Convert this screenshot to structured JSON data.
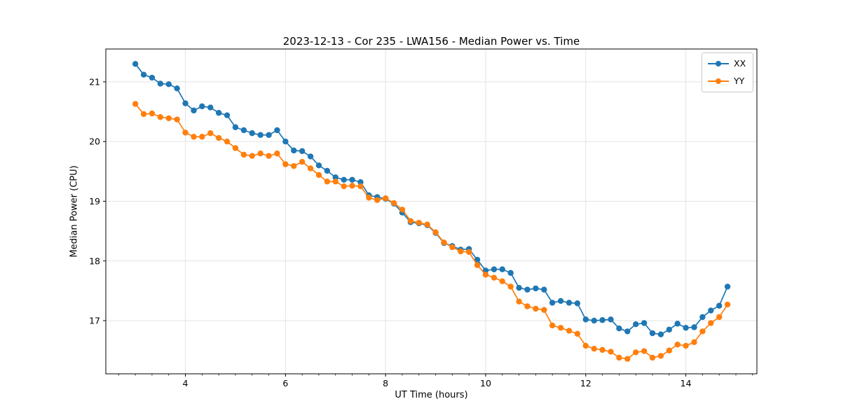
{
  "figure": {
    "background": "#ffffff"
  },
  "chart_data": {
    "type": "line",
    "title": "2023-12-13 - Cor 235 - LWA156 - Median Power vs. Time",
    "xlabel": "UT Time (hours)",
    "ylabel": "Median Power (CPU)",
    "xlim": [
      2.41,
      15.42
    ],
    "ylim": [
      16.11,
      21.55
    ],
    "x_major_ticks": [
      4,
      6,
      8,
      10,
      12,
      14
    ],
    "x_minor_tick_step": 0.33333,
    "y_major_ticks": [
      17,
      18,
      19,
      20,
      21
    ],
    "grid": true,
    "grid_color": "#e3e3e3",
    "spine_color": "#000000",
    "legend_position": "upper right",
    "x": [
      3.0,
      3.167,
      3.333,
      3.5,
      3.667,
      3.833,
      4.0,
      4.167,
      4.333,
      4.5,
      4.667,
      4.833,
      5.0,
      5.167,
      5.333,
      5.5,
      5.667,
      5.833,
      6.0,
      6.167,
      6.333,
      6.5,
      6.667,
      6.833,
      7.0,
      7.167,
      7.333,
      7.5,
      7.667,
      7.833,
      8.0,
      8.167,
      8.333,
      8.5,
      8.667,
      8.833,
      9.0,
      9.167,
      9.333,
      9.5,
      9.667,
      9.833,
      10.0,
      10.167,
      10.333,
      10.5,
      10.667,
      10.833,
      11.0,
      11.167,
      11.333,
      11.5,
      11.667,
      11.833,
      12.0,
      12.167,
      12.333,
      12.5,
      12.667,
      12.833,
      13.0,
      13.167,
      13.333,
      13.5,
      13.667,
      13.833,
      14.0,
      14.167,
      14.333,
      14.5,
      14.667,
      14.833
    ],
    "series": [
      {
        "name": "XX",
        "color": "#1f77b4",
        "values": [
          21.3,
          21.12,
          21.07,
          20.97,
          20.96,
          20.89,
          20.64,
          20.52,
          20.59,
          20.57,
          20.48,
          20.44,
          20.24,
          20.19,
          20.14,
          20.11,
          20.11,
          20.19,
          20.0,
          19.85,
          19.84,
          19.75,
          19.6,
          19.51,
          19.4,
          19.36,
          19.36,
          19.32,
          19.1,
          19.07,
          19.04,
          18.96,
          18.81,
          18.65,
          18.63,
          18.6,
          18.47,
          18.3,
          18.25,
          18.19,
          18.2,
          18.02,
          17.84,
          17.86,
          17.86,
          17.8,
          17.55,
          17.52,
          17.54,
          17.52,
          17.3,
          17.33,
          17.3,
          17.29,
          17.02,
          17.0,
          17.01,
          17.02,
          16.87,
          16.82,
          16.94,
          16.96,
          16.79,
          16.77,
          16.85,
          16.95,
          16.88,
          16.89,
          17.06,
          17.17,
          17.25,
          17.57
        ]
      },
      {
        "name": "YY",
        "color": "#ff7f0e",
        "values": [
          20.63,
          20.46,
          20.47,
          20.41,
          20.39,
          20.37,
          20.15,
          20.08,
          20.08,
          20.14,
          20.06,
          20.0,
          19.89,
          19.78,
          19.76,
          19.8,
          19.76,
          19.8,
          19.62,
          19.59,
          19.66,
          19.55,
          19.44,
          19.33,
          19.33,
          19.25,
          19.26,
          19.25,
          19.06,
          19.02,
          19.05,
          18.97,
          18.86,
          18.67,
          18.64,
          18.61,
          18.48,
          18.31,
          18.23,
          18.16,
          18.15,
          17.93,
          17.77,
          17.72,
          17.66,
          17.57,
          17.32,
          17.24,
          17.2,
          17.18,
          16.92,
          16.88,
          16.83,
          16.78,
          16.58,
          16.53,
          16.51,
          16.48,
          16.38,
          16.36,
          16.47,
          16.49,
          16.38,
          16.41,
          16.5,
          16.6,
          16.58,
          16.64,
          16.82,
          16.96,
          17.06,
          17.27
        ]
      }
    ]
  }
}
